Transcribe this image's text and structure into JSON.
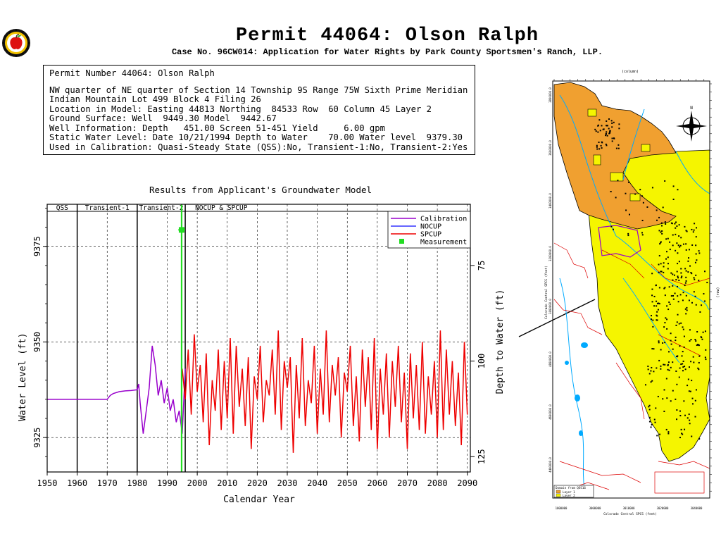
{
  "header": {
    "title": "Permit 44064:  Olson Ralph",
    "subtitle": "Case No. 96CW014: Application for Water Rights by Park County Sportsmen's Ranch, LLP."
  },
  "info": {
    "permit_line": "Permit Number 44064: Olson Ralph",
    "lines": [
      "NW quarter of NE quarter of Section 14 Township 9S Range 75W Sixth Prime Meridian",
      "Indian Mountain Lot 499 Block 4 Filing 26",
      "Location in Model: Easting 44813 Northing  84533 Row  60 Column 45 Layer 2",
      "Ground Surface: Well  9449.30 Model  9442.67",
      "Well Information: Depth   451.00 Screen 51-451 Yield     6.00 gpm",
      "Static Water Level: Date 10/21/1994 Depth to Water    70.00 Water level  9379.30",
      "Used in Calibration: Quasi-Steady State (QSS):No, Transient-1:No, Transient-2:Yes"
    ]
  },
  "chart_data": {
    "type": "line",
    "title": "Results from Applicant's Groundwater Model",
    "xlabel": "Calendar Year",
    "ylabel": "Water Level (ft)",
    "ylabel_right": "Depth to Water (ft)",
    "xlim": [
      1950,
      2091
    ],
    "ylim": [
      9316,
      9386
    ],
    "ground_surface": 9449.3,
    "x_ticks": [
      1950,
      1960,
      1970,
      1980,
      1990,
      2000,
      2010,
      2020,
      2030,
      2040,
      2050,
      2060,
      2070,
      2080,
      2090
    ],
    "y_ticks": [
      9325,
      9350,
      9375
    ],
    "y_ticks_right": [
      75,
      100,
      125
    ],
    "periods": [
      {
        "label": "QSS",
        "start": 1950,
        "end": 1960
      },
      {
        "label": "Transient-1",
        "start": 1960,
        "end": 1980
      },
      {
        "label": "Transient-2",
        "start": 1980,
        "end": 1996
      },
      {
        "label": "NOCUP  &  SPCUP",
        "start": 1996,
        "end": 2091
      }
    ],
    "grid": "dashed",
    "legend_position": "top-right",
    "series": [
      {
        "name": "Calibration",
        "color": "#9900cc",
        "x": [
          1950,
          1970,
          1971,
          1972,
          1974,
          1976,
          1978,
          1980,
          1980.5,
          1981,
          1982,
          1983,
          1984,
          1985,
          1986,
          1987,
          1988,
          1989,
          1990,
          1991,
          1992,
          1993,
          1994,
          1995,
          1996
        ],
        "y": [
          9335,
          9335,
          9336,
          9336.5,
          9337,
          9337.2,
          9337.3,
          9337.5,
          9339,
          9334,
          9326,
          9332,
          9338,
          9349,
          9344,
          9336,
          9340,
          9334,
          9338,
          9332,
          9335,
          9329,
          9332,
          9326,
          9343
        ]
      },
      {
        "name": "NOCUP",
        "color": "#3333ff",
        "x": [],
        "y": []
      },
      {
        "name": "SPCUP",
        "color": "#ee0000",
        "x": [
          1995,
          1996,
          1997,
          1998,
          1999,
          2000,
          2001,
          2002,
          2003,
          2004,
          2005,
          2006,
          2007,
          2008,
          2009,
          2010,
          2011,
          2012,
          2013,
          2014,
          2015,
          2016,
          2017,
          2018,
          2019,
          2020,
          2021,
          2022,
          2023,
          2024,
          2025,
          2026,
          2027,
          2028,
          2029,
          2030,
          2031,
          2032,
          2033,
          2034,
          2035,
          2036,
          2037,
          2038,
          2039,
          2040,
          2041,
          2042,
          2043,
          2044,
          2045,
          2046,
          2047,
          2048,
          2049,
          2050,
          2051,
          2052,
          2053,
          2054,
          2055,
          2056,
          2057,
          2058,
          2059,
          2060,
          2061,
          2062,
          2063,
          2064,
          2065,
          2066,
          2067,
          2068,
          2069,
          2070,
          2071,
          2072,
          2073,
          2074,
          2075,
          2076,
          2077,
          2078,
          2079,
          2080,
          2081,
          2082,
          2083,
          2084,
          2085,
          2086,
          2087,
          2088,
          2089,
          2090
        ],
        "y": [
          9343,
          9335,
          9348,
          9331,
          9352,
          9337,
          9344,
          9329,
          9347,
          9323,
          9340,
          9332,
          9348,
          9327,
          9345,
          9330,
          9351,
          9326,
          9349,
          9333,
          9343,
          9328,
          9346,
          9322,
          9341,
          9335,
          9349,
          9329,
          9340,
          9336,
          9348,
          9331,
          9353,
          9327,
          9345,
          9338,
          9346,
          9321,
          9344,
          9330,
          9351,
          9328,
          9340,
          9334,
          9349,
          9326,
          9343,
          9331,
          9353,
          9329,
          9344,
          9336,
          9346,
          9325,
          9342,
          9337,
          9349,
          9328,
          9341,
          9324,
          9348,
          9333,
          9346,
          9327,
          9351,
          9322,
          9343,
          9331,
          9347,
          9325,
          9345,
          9333,
          9349,
          9329,
          9342,
          9322,
          9347,
          9330,
          9344,
          9327,
          9350,
          9326,
          9341,
          9331,
          9345,
          9325,
          9353,
          9327,
          9348,
          9331,
          9345,
          9328,
          9342,
          9323,
          9350,
          9331
        ]
      },
      {
        "name": "Measurement",
        "color": "#22dd22",
        "marker": "square",
        "x": [
          1994.8
        ],
        "y": [
          9379.3
        ]
      }
    ]
  },
  "map": {
    "colors": {
      "layer1": "#f0a030",
      "layer2": "#f5f500",
      "rivers": "#00aaff",
      "roads": "#dd0000",
      "wells": "#000000"
    },
    "legend_title": "Domain from QSS16",
    "legend_items": [
      "Layer 1",
      "Layer 2"
    ],
    "north_label": "N",
    "xlabel": "Colorado Central SPCS (feet)",
    "ylabel": "Colorado Central SPCS (feet)",
    "top_axis_label": "(column)",
    "right_axis_label": "(row)",
    "x_ticks": [
      "1000000",
      "3000000",
      "3010000",
      "3020000",
      "3040000"
    ],
    "y_ticks": [
      "3800000.0",
      "3600000.0",
      "3400000.0",
      "3200000.0",
      "3000000.0",
      "4800000.0",
      "4600000.0",
      "4400000.0"
    ]
  }
}
